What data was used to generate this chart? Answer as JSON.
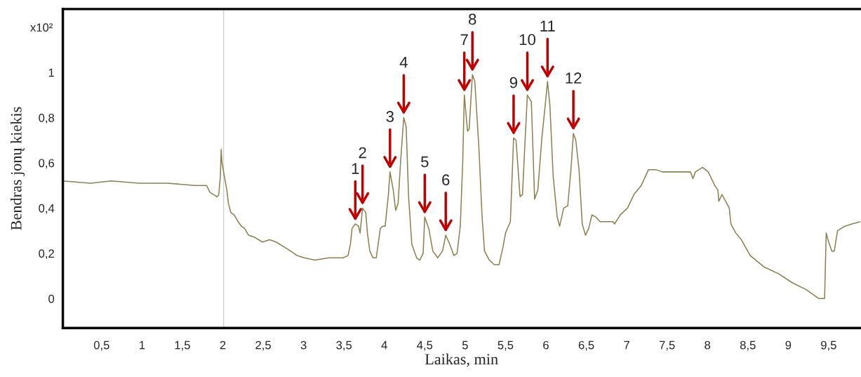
{
  "chart_data": {
    "type": "line",
    "xlabel": "Laikas, min",
    "ylabel": "Bendras jonų kiekis",
    "x": [
      0.02,
      0.36,
      0.62,
      0.97,
      1.32,
      1.66,
      1.8,
      1.84,
      1.93,
      1.95,
      1.97,
      1.98,
      1.99,
      2.02,
      2.05,
      2.07,
      2.1,
      2.14,
      2.19,
      2.23,
      2.27,
      2.32,
      2.4,
      2.49,
      2.58,
      2.66,
      2.75,
      2.84,
      2.92,
      3.01,
      3.14,
      3.31,
      3.4,
      3.49,
      3.55,
      3.58,
      3.6,
      3.64,
      3.68,
      3.7,
      3.73,
      3.77,
      3.79,
      3.82,
      3.86,
      3.9,
      3.95,
      3.98,
      4.01,
      4.05,
      4.07,
      4.11,
      4.14,
      4.17,
      4.2,
      4.24,
      4.27,
      4.3,
      4.34,
      4.4,
      4.44,
      4.48,
      4.5,
      4.55,
      4.6,
      4.66,
      4.72,
      4.76,
      4.81,
      4.86,
      4.9,
      4.94,
      4.97,
      4.99,
      5.03,
      5.05,
      5.09,
      5.12,
      5.17,
      5.21,
      5.24,
      5.3,
      5.36,
      5.42,
      5.47,
      5.5,
      5.56,
      5.6,
      5.63,
      5.68,
      5.71,
      5.77,
      5.82,
      5.86,
      5.9,
      5.95,
      5.99,
      6.02,
      6.05,
      6.09,
      6.14,
      6.17,
      6.22,
      6.27,
      6.31,
      6.34,
      6.37,
      6.41,
      6.45,
      6.49,
      6.53,
      6.57,
      6.62,
      6.67,
      6.75,
      6.83,
      6.85,
      6.92,
      7.01,
      7.09,
      7.18,
      7.27,
      7.36,
      7.44,
      7.57,
      7.7,
      7.79,
      7.82,
      7.85,
      7.94,
      8.01,
      8.09,
      8.13,
      8.14,
      8.18,
      8.27,
      8.29,
      8.35,
      8.42,
      8.53,
      8.7,
      8.88,
      9.05,
      9.22,
      9.38,
      9.45,
      9.47,
      9.5,
      9.54,
      9.57,
      9.61,
      9.7,
      9.79,
      9.89
    ],
    "series": [
      {
        "color": "#8b8050",
        "values": [
          0.52,
          0.51,
          0.52,
          0.51,
          0.51,
          0.5,
          0.5,
          0.47,
          0.45,
          0.46,
          0.54,
          0.66,
          0.6,
          0.54,
          0.48,
          0.42,
          0.38,
          0.37,
          0.34,
          0.32,
          0.31,
          0.28,
          0.27,
          0.25,
          0.26,
          0.25,
          0.23,
          0.21,
          0.19,
          0.18,
          0.17,
          0.18,
          0.18,
          0.18,
          0.19,
          0.24,
          0.31,
          0.33,
          0.32,
          0.29,
          0.4,
          0.38,
          0.29,
          0.21,
          0.18,
          0.18,
          0.31,
          0.32,
          0.32,
          0.46,
          0.56,
          0.48,
          0.39,
          0.42,
          0.6,
          0.8,
          0.76,
          0.45,
          0.24,
          0.18,
          0.17,
          0.2,
          0.36,
          0.31,
          0.21,
          0.18,
          0.21,
          0.28,
          0.24,
          0.19,
          0.2,
          0.32,
          0.6,
          0.9,
          0.74,
          0.75,
          0.99,
          0.96,
          0.67,
          0.36,
          0.21,
          0.17,
          0.15,
          0.15,
          0.23,
          0.29,
          0.34,
          0.71,
          0.7,
          0.45,
          0.46,
          0.9,
          0.87,
          0.44,
          0.48,
          0.71,
          0.85,
          0.96,
          0.85,
          0.54,
          0.36,
          0.32,
          0.4,
          0.41,
          0.57,
          0.73,
          0.7,
          0.57,
          0.33,
          0.28,
          0.31,
          0.37,
          0.36,
          0.34,
          0.34,
          0.34,
          0.33,
          0.37,
          0.4,
          0.46,
          0.5,
          0.57,
          0.57,
          0.56,
          0.56,
          0.56,
          0.56,
          0.53,
          0.56,
          0.58,
          0.56,
          0.5,
          0.48,
          0.43,
          0.46,
          0.4,
          0.33,
          0.29,
          0.26,
          0.19,
          0.14,
          0.11,
          0.07,
          0.04,
          0.0,
          0.0,
          0.29,
          0.25,
          0.21,
          0.21,
          0.3,
          0.32,
          0.33,
          0.34
        ]
      }
    ],
    "xlim": [
      0.02,
      9.89
    ],
    "ylim": [
      -0.13,
      1.28
    ],
    "xticks": [
      {
        "value": 0.5,
        "label": "0,5"
      },
      1,
      {
        "value": 1.5,
        "label": "1,5"
      },
      2,
      {
        "value": 2.5,
        "label": "2,5"
      },
      3,
      {
        "value": 3.5,
        "label": "3,5"
      },
      4,
      {
        "value": 4.5,
        "label": "4,5"
      },
      5,
      {
        "value": 5.5,
        "label": "5,5"
      },
      6,
      {
        "value": 6.5,
        "label": "6,5"
      },
      7,
      {
        "value": 7.5,
        "label": "7,5"
      },
      8,
      {
        "value": 8.5,
        "label": "8,5"
      },
      9,
      {
        "value": 9.5,
        "label": "9,5"
      }
    ],
    "yticks": [
      0,
      {
        "value": 0.2,
        "label": "0,2"
      },
      {
        "value": 0.4,
        "label": "0,4"
      },
      {
        "value": 0.6,
        "label": "0,6"
      },
      {
        "value": 0.8,
        "label": "0,8"
      },
      1
    ],
    "grid": false,
    "ref_lines": [
      {
        "axis": "x",
        "value": 2.01,
        "color": "#d0d0d0"
      }
    ],
    "annotations": [
      "x10²",
      {
        "text": "1",
        "x": 3.64,
        "y": 0.33
      },
      {
        "text": "2",
        "x": 3.73,
        "y": 0.4
      },
      {
        "text": "3",
        "x": 4.07,
        "y": 0.56
      },
      {
        "text": "4",
        "x": 4.24,
        "y": 0.8
      },
      {
        "text": "5",
        "x": 4.5,
        "y": 0.36
      },
      {
        "text": "6",
        "x": 4.76,
        "y": 0.28
      },
      {
        "text": "7",
        "x": 4.99,
        "y": 0.9
      },
      {
        "text": "8",
        "x": 5.09,
        "y": 0.99
      },
      {
        "text": "9",
        "x": 5.6,
        "y": 0.71
      },
      {
        "text": "10",
        "x": 5.77,
        "y": 0.9
      },
      {
        "text": "11",
        "x": 6.02,
        "y": 0.96
      },
      {
        "text": "12",
        "x": 6.34,
        "y": 0.73
      }
    ]
  }
}
